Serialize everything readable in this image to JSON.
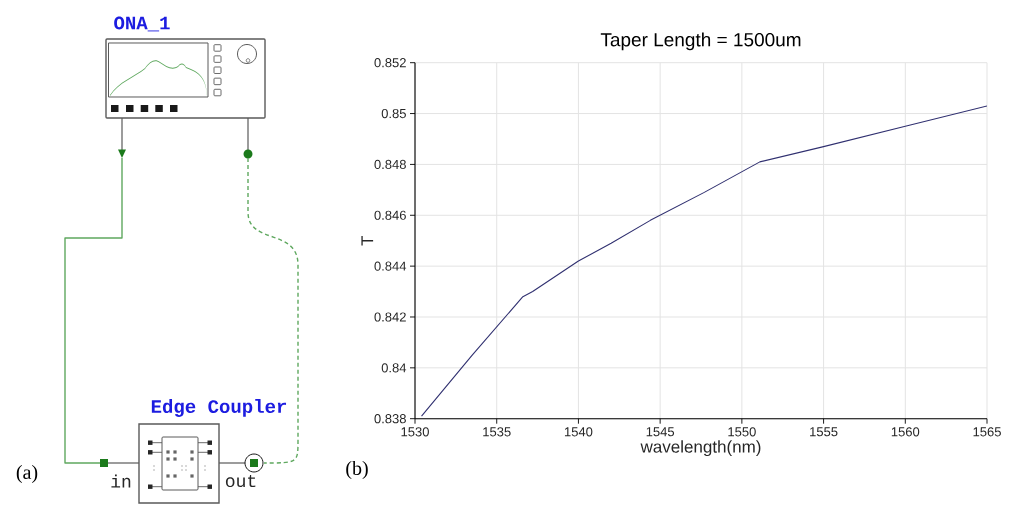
{
  "chart_data": [
    {
      "type": "other",
      "annotations": [
        "ONA_1",
        "Edge Coupler",
        "in",
        "out",
        "(a)"
      ]
    },
    {
      "type": "line",
      "title": "Taper Length = 1500um",
      "xlabel": "wavelength(nm)",
      "ylabel": "T",
      "x": [
        1530.4,
        1533.5,
        1536.6,
        1537.2,
        1540.0,
        1542.0,
        1544.4,
        1547.7,
        1551.1,
        1555.0,
        1560.0,
        1565.0
      ],
      "values": [
        0.8381,
        0.8405,
        0.8428,
        0.843,
        0.8442,
        0.8449,
        0.8458,
        0.8469,
        0.8481,
        0.8487,
        0.8495,
        0.8503
      ],
      "color": "#303070",
      "xlim": [
        1530,
        1565
      ],
      "ylim": [
        0.838,
        0.852
      ],
      "xticks": [
        1530,
        1535,
        1540,
        1545,
        1550,
        1555,
        1560,
        1565
      ],
      "yticks": [
        0.838,
        0.84,
        0.842,
        0.844,
        0.846,
        0.848,
        0.85,
        0.852
      ],
      "grid": true,
      "annotations": [
        "(b)"
      ]
    }
  ]
}
